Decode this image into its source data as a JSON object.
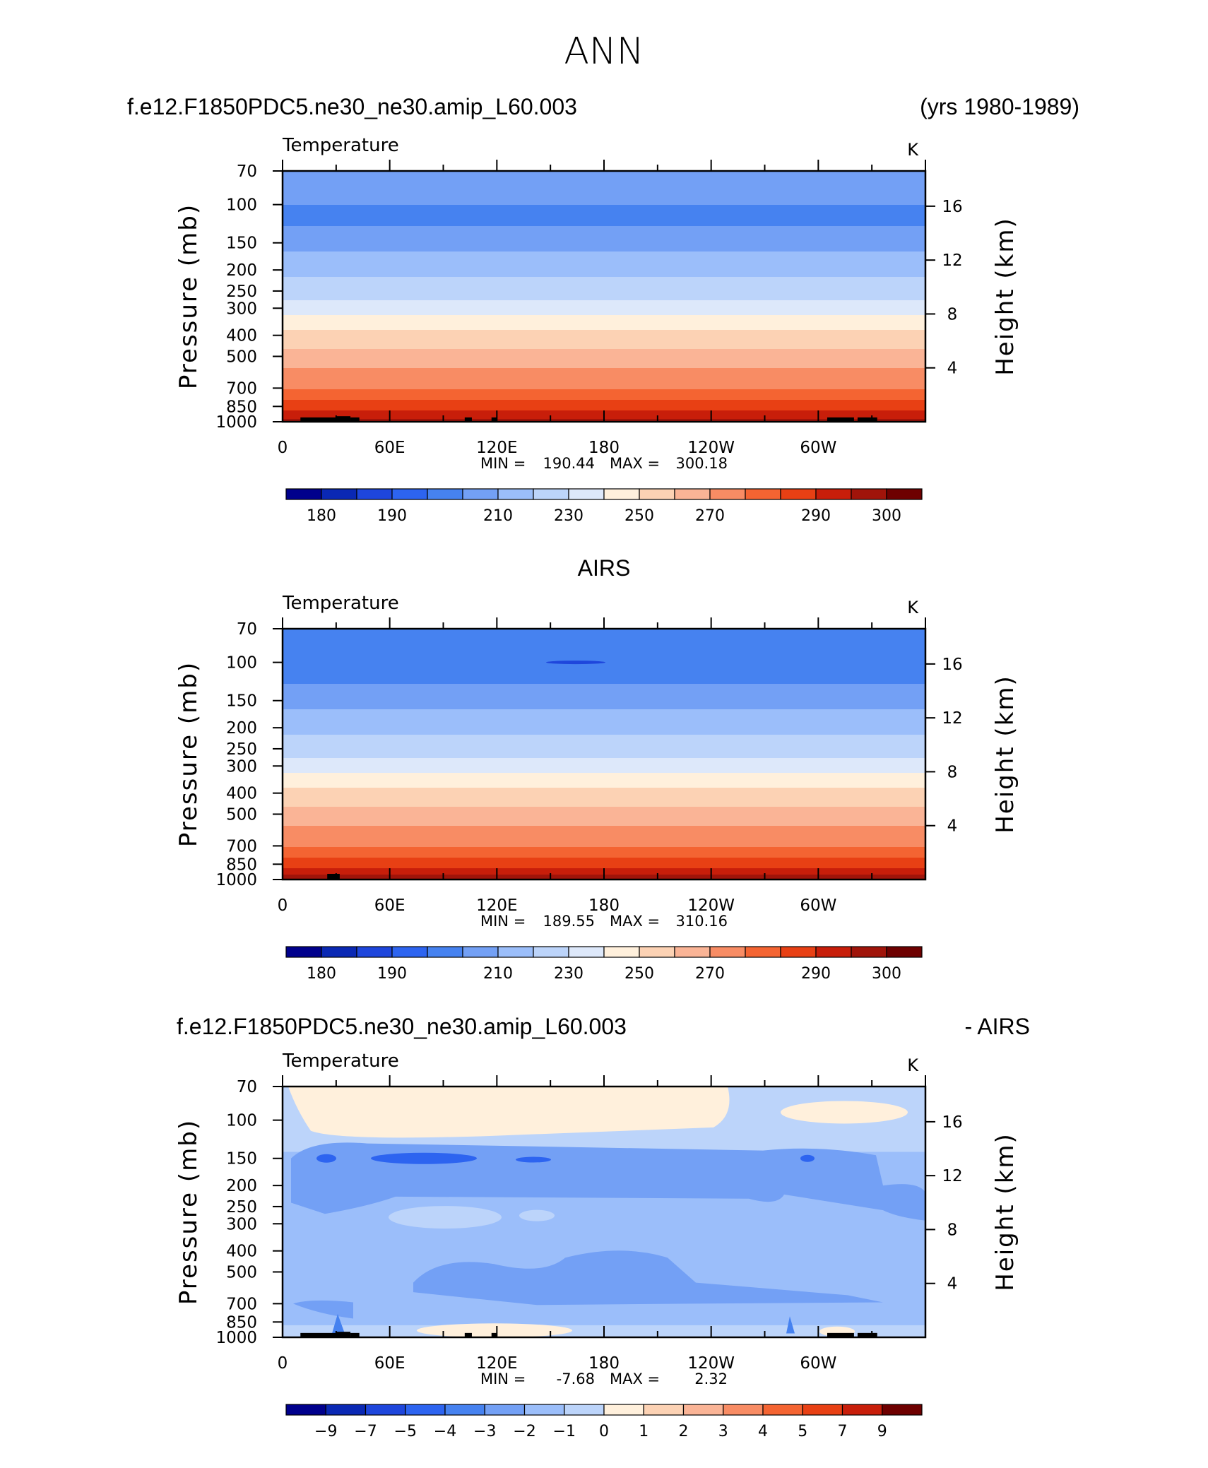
{
  "page": {
    "title": "ANN",
    "header_left": "f.e12.F1850PDC5.ne30_ne30.amip_L60.003",
    "header_right": "(yrs 1980-1989)"
  },
  "panels": [
    {
      "id": "model",
      "title_center": "",
      "title_left": "",
      "title_right": "",
      "var_label": "Temperature",
      "units": "K",
      "y_left_label": "Pressure (mb)",
      "y_right_label": "Height (km)",
      "stats_min_label": "MIN =",
      "stats_min": "190.44",
      "stats_max_label": "MAX =",
      "stats_max": "300.18"
    },
    {
      "id": "obs",
      "title_center": "AIRS",
      "title_left": "",
      "title_right": "",
      "var_label": "Temperature",
      "units": "K",
      "y_left_label": "Pressure (mb)",
      "y_right_label": "Height (km)",
      "stats_min_label": "MIN =",
      "stats_min": "189.55",
      "stats_max_label": "MAX =",
      "stats_max": "310.16"
    },
    {
      "id": "diff",
      "title_center": "",
      "title_left": "f.e12.F1850PDC5.ne30_ne30.amip_L60.003",
      "title_right": "- AIRS",
      "var_label": "Temperature",
      "units": "K",
      "y_left_label": "Pressure (mb)",
      "y_right_label": "Height (km)",
      "stats_min_label": "MIN =",
      "stats_min": "-7.68",
      "stats_max_label": "MAX =",
      "stats_max": "2.32"
    }
  ],
  "colors": {
    "palette": [
      "#00008c",
      "#0a28b4",
      "#1e46dc",
      "#2d64f0",
      "#4682f0",
      "#73a0f5",
      "#9bbefa",
      "#bcd4fa",
      "#dde8fa",
      "#fff0dc",
      "#fcd2b4",
      "#fab496",
      "#f88c64",
      "#f46432",
      "#e84014",
      "#c81e0a",
      "#a0140a",
      "#6e0000"
    ],
    "land_mask": "#000000"
  },
  "chart_data": [
    {
      "type": "heatmap",
      "panel": "model",
      "x_ticks": [
        "0",
        "60E",
        "120E",
        "180",
        "120W",
        "60W"
      ],
      "y_ticks_pressure": [
        70,
        100,
        150,
        200,
        250,
        300,
        400,
        500,
        700,
        850,
        1000
      ],
      "y_ticks_height_km": [
        16,
        12,
        8,
        4
      ],
      "ylim_mb": [
        1000,
        70
      ],
      "y_scale": "log",
      "contour_levels": [
        180,
        185,
        190,
        195,
        200,
        210,
        220,
        230,
        240,
        250,
        260,
        270,
        280,
        285,
        290,
        295,
        300
      ],
      "colorbar_labels": [
        "180",
        "190",
        "210",
        "230",
        "250",
        "270",
        "290",
        "300"
      ],
      "profile_mb_to_K": [
        [
          70,
          200
        ],
        [
          100,
          200
        ],
        [
          115,
          195
        ],
        [
          140,
          205
        ],
        [
          175,
          212
        ],
        [
          200,
          218
        ],
        [
          250,
          225
        ],
        [
          300,
          235
        ],
        [
          350,
          245
        ],
        [
          400,
          253
        ],
        [
          460,
          260
        ],
        [
          520,
          267
        ],
        [
          600,
          272
        ],
        [
          700,
          279
        ],
        [
          800,
          285
        ],
        [
          900,
          291
        ],
        [
          1000,
          297
        ]
      ],
      "min": 190.44,
      "max": 300.18
    },
    {
      "type": "heatmap",
      "panel": "obs",
      "x_ticks": [
        "0",
        "60E",
        "120E",
        "180",
        "120W",
        "60W"
      ],
      "y_ticks_pressure": [
        70,
        100,
        150,
        200,
        250,
        300,
        400,
        500,
        700,
        850,
        1000
      ],
      "y_ticks_height_km": [
        16,
        12,
        8,
        4
      ],
      "ylim_mb": [
        1000,
        70
      ],
      "y_scale": "log",
      "contour_levels": [
        180,
        185,
        190,
        195,
        200,
        210,
        220,
        230,
        240,
        250,
        260,
        270,
        280,
        285,
        290,
        295,
        300
      ],
      "colorbar_labels": [
        "180",
        "190",
        "210",
        "230",
        "250",
        "270",
        "290",
        "300"
      ],
      "profile_mb_to_K": [
        [
          70,
          200
        ],
        [
          100,
          199
        ],
        [
          115,
          195
        ],
        [
          140,
          205
        ],
        [
          175,
          212
        ],
        [
          200,
          218
        ],
        [
          250,
          225
        ],
        [
          300,
          235
        ],
        [
          350,
          245
        ],
        [
          400,
          253
        ],
        [
          460,
          260
        ],
        [
          520,
          267
        ],
        [
          600,
          272
        ],
        [
          700,
          279
        ],
        [
          800,
          285
        ],
        [
          900,
          291
        ],
        [
          1000,
          298
        ]
      ],
      "min": 189.55,
      "max": 310.16
    },
    {
      "type": "heatmap",
      "panel": "diff",
      "x_ticks": [
        "0",
        "60E",
        "120E",
        "180",
        "120W",
        "60W"
      ],
      "y_ticks_pressure": [
        70,
        100,
        150,
        200,
        250,
        300,
        400,
        500,
        700,
        850,
        1000
      ],
      "y_ticks_height_km": [
        16,
        12,
        8,
        4
      ],
      "ylim_mb": [
        1000,
        70
      ],
      "y_scale": "log",
      "contour_levels": [
        -9,
        -7,
        -5,
        -4,
        -3,
        -2,
        -1,
        0,
        1,
        2,
        3,
        4,
        5,
        7,
        9
      ],
      "colorbar_labels": [
        "-9",
        "-7",
        "-5",
        "-4",
        "-3",
        "-2",
        "-1",
        "0",
        "1",
        "2",
        "3",
        "4",
        "5",
        "7",
        "9"
      ],
      "min": -7.68,
      "max": 2.32
    }
  ]
}
